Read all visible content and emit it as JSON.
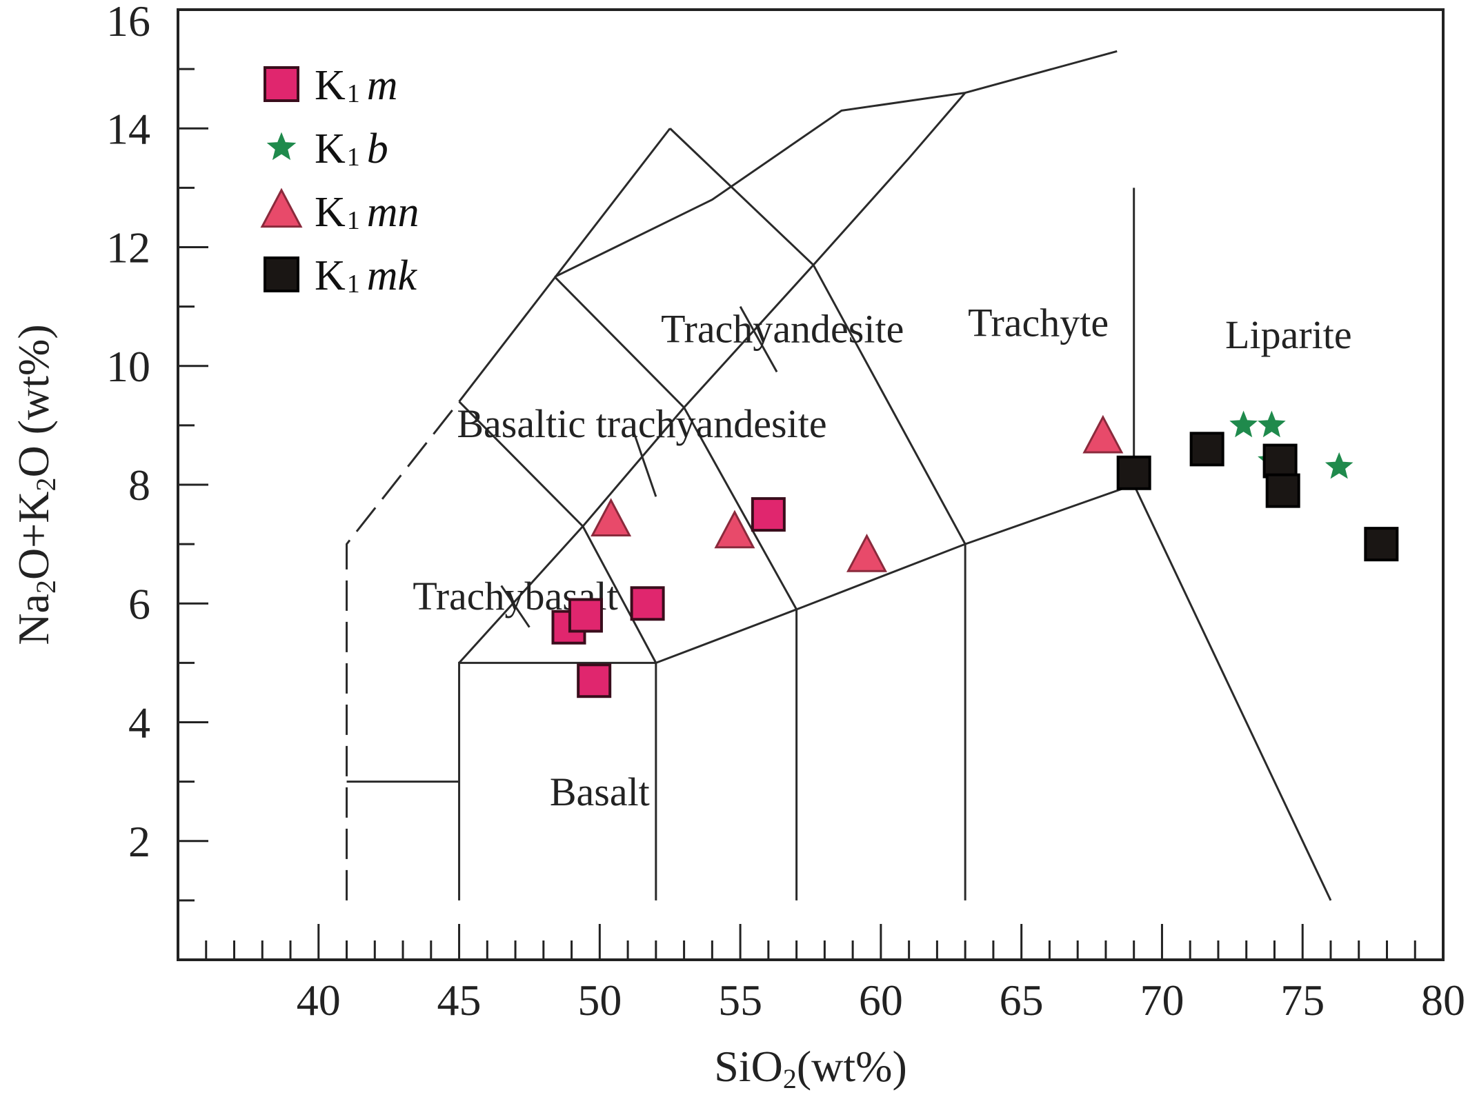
{
  "chart_data": {
    "type": "scatter",
    "xlabel": {
      "main": "SiO",
      "sub": "2",
      "suffix": "(wt%)"
    },
    "ylabel": {
      "parts": [
        {
          "t": "Na",
          "sub": false
        },
        {
          "t": "2",
          "sub": true
        },
        {
          "t": "O+K",
          "sub": false
        },
        {
          "t": "2",
          "sub": true
        },
        {
          "t": "O (wt%)",
          "sub": false
        }
      ]
    },
    "xlim": [
      35,
      80
    ],
    "ylim": [
      0,
      16
    ],
    "xticks": [
      40,
      45,
      50,
      55,
      60,
      65,
      70,
      75,
      80
    ],
    "xtick_labels": [
      "40",
      "45",
      "50",
      "55",
      "60",
      "65",
      "70",
      "75",
      "80"
    ],
    "yticks": [
      2,
      4,
      6,
      8,
      10,
      12,
      14,
      16
    ],
    "ytick_labels": [
      "2",
      "4",
      "6",
      "8",
      "10",
      "12",
      "14",
      "16"
    ],
    "grid": false,
    "legend_position": "top-left",
    "series": [
      {
        "name": "K1m",
        "label_main": "K",
        "label_sub": "1",
        "label_ital": "m",
        "marker": "square",
        "color": "#e0266e",
        "edge": "#3a0d1c",
        "points": [
          [
            48.9,
            5.6
          ],
          [
            49.5,
            5.8
          ],
          [
            49.8,
            4.7
          ],
          [
            51.7,
            6.0
          ],
          [
            56.0,
            7.5
          ]
        ]
      },
      {
        "name": "K1b",
        "label_main": "K",
        "label_sub": "1",
        "label_ital": "b",
        "marker": "star",
        "color": "#1f8a4c",
        "edge": "#1f8a4c",
        "points": [
          [
            72.9,
            9.0
          ],
          [
            73.9,
            9.0
          ],
          [
            73.9,
            8.4
          ],
          [
            76.3,
            8.3
          ]
        ]
      },
      {
        "name": "K1mn",
        "label_main": "K",
        "label_sub": "1",
        "label_ital": "mn",
        "marker": "triangle",
        "color": "#e84a6a",
        "edge": "#8a2a3c",
        "points": [
          [
            50.4,
            7.4
          ],
          [
            54.8,
            7.2
          ],
          [
            59.5,
            6.8
          ],
          [
            67.9,
            8.8
          ]
        ]
      },
      {
        "name": "K1mk",
        "label_main": "K",
        "label_sub": "1",
        "label_ital": "mk",
        "marker": "square",
        "color": "#1a1614",
        "edge": "#000000",
        "points": [
          [
            69.0,
            8.2
          ],
          [
            71.6,
            8.6
          ],
          [
            74.2,
            8.4
          ],
          [
            74.3,
            7.9
          ],
          [
            77.8,
            7.0
          ]
        ]
      }
    ],
    "field_labels": [
      {
        "text": "Trachyandesite",
        "x": 56.5,
        "y": 10.4
      },
      {
        "text": "Trachyte",
        "x": 65.6,
        "y": 10.5
      },
      {
        "text": "Liparite",
        "x": 74.5,
        "y": 10.3
      },
      {
        "text": "Basaltic trachyandesite",
        "x": 51.5,
        "y": 8.8
      },
      {
        "text": "Trachybasalt",
        "x": 47.0,
        "y": 5.9
      },
      {
        "text": "Basalt",
        "x": 50.0,
        "y": 2.6
      }
    ],
    "field_boundaries": {
      "solid": [
        [
          [
            41,
            3
          ],
          [
            45,
            3
          ]
        ],
        [
          [
            45,
            1
          ],
          [
            45,
            5
          ],
          [
            52,
            5
          ],
          [
            52,
            1
          ]
        ],
        [
          [
            52,
            5
          ],
          [
            57,
            5.9
          ],
          [
            57,
            1
          ]
        ],
        [
          [
            57,
            5.9
          ],
          [
            63,
            7
          ],
          [
            63,
            1
          ]
        ],
        [
          [
            63,
            7
          ],
          [
            69,
            8
          ],
          [
            76,
            1
          ]
        ],
        [
          [
            69,
            8
          ],
          [
            69,
            13
          ]
        ],
        [
          [
            45,
            5
          ],
          [
            49.4,
            7.3
          ],
          [
            52,
            5
          ]
        ],
        [
          [
            49.4,
            7.3
          ],
          [
            53,
            9.3
          ],
          [
            57,
            5.9
          ]
        ],
        [
          [
            53,
            9.3
          ],
          [
            57.6,
            11.7
          ],
          [
            63,
            7
          ]
        ],
        [
          [
            45,
            9.4
          ],
          [
            49.4,
            7.3
          ]
        ],
        [
          [
            48.4,
            11.5
          ],
          [
            53,
            9.3
          ]
        ],
        [
          [
            52.5,
            14
          ],
          [
            57.6,
            11.7
          ]
        ],
        [
          [
            45,
            9.4
          ],
          [
            52.5,
            14
          ]
        ],
        [
          [
            57.6,
            11.7
          ],
          [
            61,
            13.5
          ],
          [
            63,
            14.6
          ]
        ],
        [
          [
            48.4,
            11.5
          ],
          [
            54,
            12.8
          ],
          [
            58.6,
            14.3
          ],
          [
            63,
            14.6
          ],
          [
            68.4,
            15.3
          ]
        ],
        [
          [
            47.5,
            5.6
          ],
          [
            46.5,
            6.3
          ]
        ],
        [
          [
            52,
            7.8
          ],
          [
            51.2,
            8.9
          ]
        ],
        [
          [
            56.3,
            9.9
          ],
          [
            55.0,
            11.0
          ]
        ]
      ],
      "dashed": [
        [
          [
            41,
            1
          ],
          [
            41,
            7
          ],
          [
            45,
            9.4
          ]
        ]
      ]
    }
  }
}
